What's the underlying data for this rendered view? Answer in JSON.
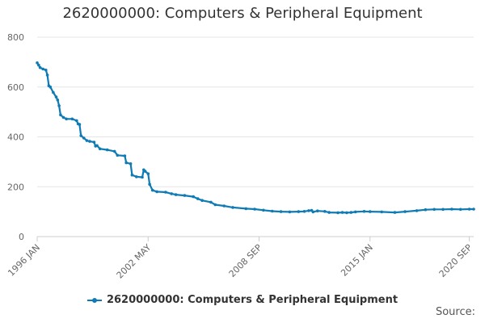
{
  "chart_data": {
    "type": "line",
    "title": "2620000000: Computers & Peripheral Equipment",
    "xlabel": "",
    "ylabel": "",
    "ylim": [
      0,
      800
    ],
    "yticks": [
      0,
      200,
      400,
      600,
      800
    ],
    "xlim": [
      "1996-01",
      "2020-12"
    ],
    "xticks": [
      {
        "value": "1996-01",
        "label": "1996 JAN"
      },
      {
        "value": "2002-05",
        "label": "2002 MAY"
      },
      {
        "value": "2008-09",
        "label": "2008 SEP"
      },
      {
        "value": "2015-01",
        "label": "2015 JAN"
      },
      {
        "value": "2020-09",
        "label": "2020 SEP"
      }
    ],
    "grid": true,
    "legend_position": "bottom",
    "series": [
      {
        "name": "2620000000: Computers & Peripheral Equipment",
        "color": "#0e7bb5",
        "points": [
          [
            "1996-01",
            697
          ],
          [
            "1996-02",
            688
          ],
          [
            "1996-03",
            678
          ],
          [
            "1996-05",
            672
          ],
          [
            "1996-07",
            668
          ],
          [
            "1996-08",
            648
          ],
          [
            "1996-09",
            605
          ],
          [
            "1996-10",
            600
          ],
          [
            "1996-12",
            578
          ],
          [
            "1997-02",
            560
          ],
          [
            "1997-03",
            548
          ],
          [
            "1997-04",
            525
          ],
          [
            "1997-05",
            488
          ],
          [
            "1997-07",
            478
          ],
          [
            "1997-09",
            472
          ],
          [
            "1998-01",
            472
          ],
          [
            "1998-04",
            465
          ],
          [
            "1998-05",
            452
          ],
          [
            "1998-06",
            450
          ],
          [
            "1998-07",
            405
          ],
          [
            "1998-09",
            395
          ],
          [
            "1998-11",
            385
          ],
          [
            "1999-01",
            382
          ],
          [
            "1999-04",
            379
          ],
          [
            "1999-05",
            363
          ],
          [
            "1999-06",
            365
          ],
          [
            "1999-08",
            352
          ],
          [
            "2000-01",
            348
          ],
          [
            "2000-06",
            342
          ],
          [
            "2000-08",
            326
          ],
          [
            "2001-01",
            324
          ],
          [
            "2001-02",
            296
          ],
          [
            "2001-05",
            292
          ],
          [
            "2001-06",
            247
          ],
          [
            "2001-09",
            240
          ],
          [
            "2002-01",
            238
          ],
          [
            "2002-02",
            268
          ],
          [
            "2002-03",
            262
          ],
          [
            "2002-05",
            252
          ],
          [
            "2002-06",
            210
          ],
          [
            "2002-08",
            186
          ],
          [
            "2002-11",
            180
          ],
          [
            "2003-05",
            178
          ],
          [
            "2003-09",
            172
          ],
          [
            "2003-12",
            168
          ],
          [
            "2004-06",
            165
          ],
          [
            "2004-12",
            160
          ],
          [
            "2005-03",
            152
          ],
          [
            "2005-06",
            145
          ],
          [
            "2005-12",
            138
          ],
          [
            "2006-03",
            128
          ],
          [
            "2006-09",
            123
          ],
          [
            "2007-03",
            117
          ],
          [
            "2007-12",
            112
          ],
          [
            "2008-06",
            110
          ],
          [
            "2008-12",
            106
          ],
          [
            "2009-06",
            102
          ],
          [
            "2009-12",
            100
          ],
          [
            "2010-06",
            99
          ],
          [
            "2010-12",
            100
          ],
          [
            "2011-04",
            101
          ],
          [
            "2011-07",
            104
          ],
          [
            "2011-09",
            105
          ],
          [
            "2011-10",
            99
          ],
          [
            "2012-01",
            103
          ],
          [
            "2012-06",
            101
          ],
          [
            "2012-09",
            97
          ],
          [
            "2013-03",
            96
          ],
          [
            "2013-06",
            97
          ],
          [
            "2013-09",
            96
          ],
          [
            "2013-12",
            97
          ],
          [
            "2014-03",
            99
          ],
          [
            "2014-09",
            101
          ],
          [
            "2015-01",
            100
          ],
          [
            "2015-09",
            99
          ],
          [
            "2016-06",
            97
          ],
          [
            "2017-01",
            100
          ],
          [
            "2017-09",
            104
          ],
          [
            "2018-03",
            108
          ],
          [
            "2018-09",
            109
          ],
          [
            "2019-03",
            109
          ],
          [
            "2019-09",
            110
          ],
          [
            "2020-03",
            109
          ],
          [
            "2020-09",
            110
          ],
          [
            "2020-12",
            110
          ]
        ]
      }
    ]
  },
  "source_label": "Source:"
}
